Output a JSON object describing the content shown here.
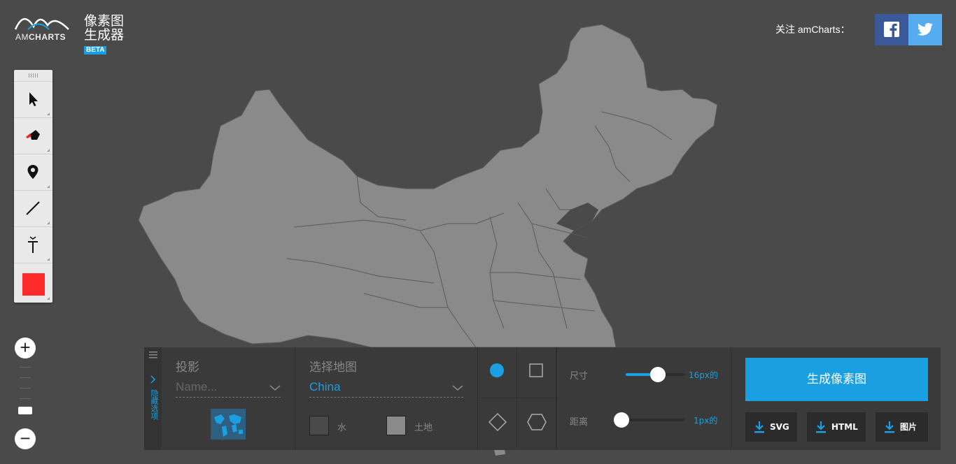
{
  "brand": {
    "logo_text_light": "AM",
    "logo_text_bold": "CHARTS",
    "title_line1": "像素图",
    "title_line2": "生成器",
    "badge": "BETA"
  },
  "social": {
    "follow_label": "关注 amCharts：",
    "facebook_icon": "facebook-icon",
    "twitter_icon": "twitter-icon"
  },
  "toolbar": {
    "tools": [
      "pointer-icon",
      "brush-icon",
      "map-pin-icon",
      "line-icon",
      "text-icon",
      "color-swatch"
    ],
    "active_color": "#ff2a2a"
  },
  "zoom": {
    "in_label": "+",
    "out_label": "−"
  },
  "panel": {
    "hide_label": "隐藏选项",
    "projection": {
      "title": "投影",
      "placeholder": "Name..."
    },
    "map": {
      "title": "选择地图",
      "value": "China",
      "water_label": "水",
      "land_label": "土地",
      "water_color": "#4a4a4a",
      "land_color": "#8a8a8a"
    },
    "shapes": [
      "circle",
      "square",
      "diamond",
      "hexagon"
    ],
    "size": {
      "label": "尺寸",
      "value_text": "16px的",
      "fraction": 0.55
    },
    "spacing": {
      "label": "距离",
      "value_text": "1px的",
      "fraction": 0.0
    },
    "generate_label": "生成像素图",
    "downloads": [
      "SVG",
      "HTML",
      "图片"
    ]
  },
  "colors": {
    "accent": "#1aa0e2",
    "background": "#4a4a4a",
    "land": "#8a8a8a",
    "facebook": "#3b5998",
    "twitter": "#55acee"
  }
}
